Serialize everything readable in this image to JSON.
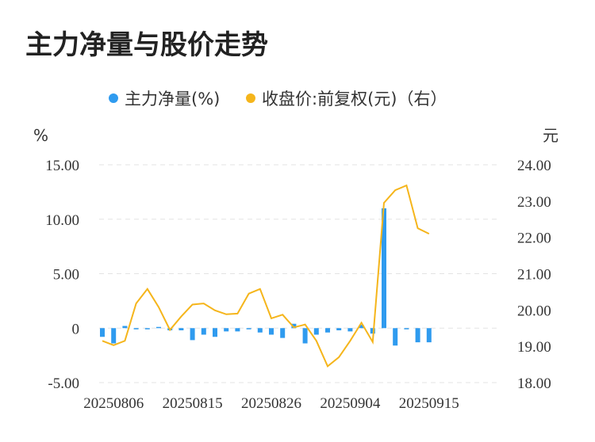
{
  "title": "主力净量与股价走势",
  "chart_data": {
    "type": "bar+line",
    "title": "主力净量与股价走势",
    "legend": {
      "placement": "top-center",
      "items": [
        {
          "label": "主力净量(%)",
          "color": "#2f9bef",
          "marker": "dot"
        },
        {
          "label": "收盘价:前复权(元)（右）",
          "color": "#f5b51b",
          "marker": "dot"
        }
      ]
    },
    "left_axis": {
      "unit": "%",
      "ylim": [
        -5,
        15
      ],
      "ticks": [
        "15.00",
        "10.00",
        "5.00",
        "0",
        "-5.00"
      ],
      "tick_values": [
        15,
        10,
        5,
        0,
        -5
      ]
    },
    "right_axis": {
      "unit": "元",
      "ylim": [
        18,
        24
      ],
      "ticks": [
        "24.00",
        "23.00",
        "22.00",
        "21.00",
        "20.00",
        "19.00",
        "18.00"
      ],
      "tick_values": [
        24,
        23,
        22,
        21,
        20,
        19,
        18
      ]
    },
    "x_tick_labels": [
      "20250806",
      "20250815",
      "20250826",
      "20250904",
      "20250915"
    ],
    "x_tick_indices": [
      1,
      8,
      15,
      22,
      29
    ],
    "grid": "horizontal-dashed",
    "series": [
      {
        "name": "主力净量(%)",
        "type": "bar",
        "axis": "left",
        "color": "#2f9bef",
        "values": [
          -0.8,
          -1.4,
          0.2,
          -0.1,
          -0.1,
          0.1,
          -0.2,
          -0.2,
          -1.1,
          -0.6,
          -0.8,
          -0.3,
          -0.3,
          -0.1,
          -0.4,
          -0.6,
          -0.9,
          0.4,
          -1.4,
          -0.6,
          -0.4,
          -0.2,
          -0.3,
          0.3,
          -0.5,
          11.0,
          -1.6,
          -0.1,
          -1.3,
          -1.3
        ]
      },
      {
        "name": "收盘价:前复权(元)（右）",
        "type": "line",
        "axis": "right",
        "color": "#f5b51b",
        "values": [
          19.15,
          19.03,
          19.15,
          20.18,
          20.58,
          20.08,
          19.45,
          19.82,
          20.15,
          20.18,
          19.99,
          19.88,
          19.9,
          20.45,
          20.58,
          19.77,
          19.87,
          19.52,
          19.6,
          19.15,
          18.45,
          18.7,
          19.15,
          19.65,
          19.12,
          22.95,
          23.3,
          23.43,
          22.25,
          22.1
        ]
      }
    ]
  }
}
